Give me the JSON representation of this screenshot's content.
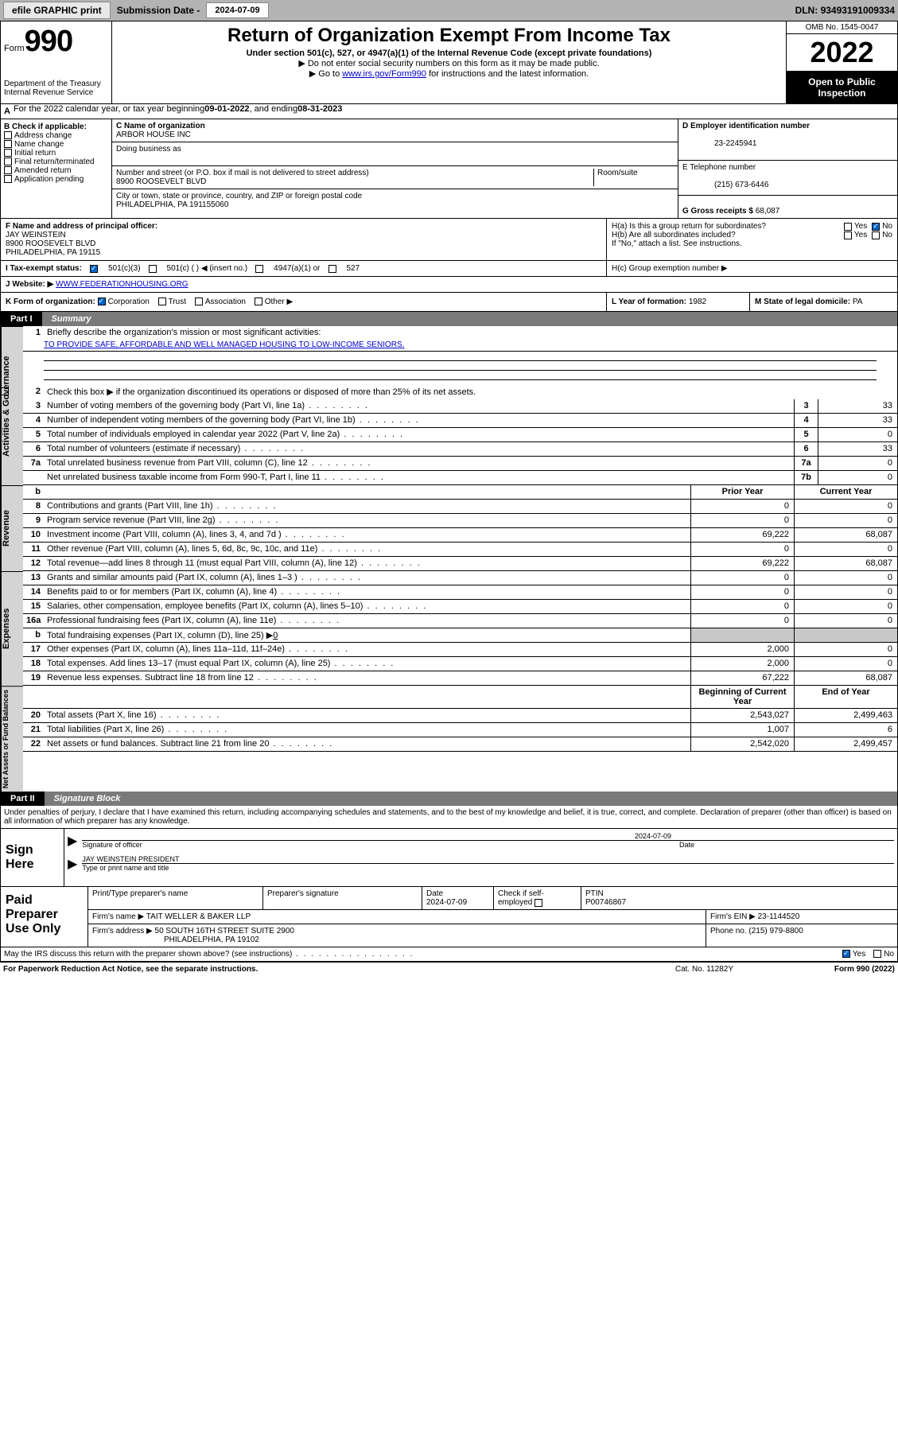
{
  "topbar": {
    "efile_btn": "efile GRAPHIC print",
    "submission_label": "Submission Date - ",
    "submission_date": "2024-07-09",
    "dln_label": "DLN: ",
    "dln": "93493191009334"
  },
  "header": {
    "form_word": "Form",
    "form_no": "990",
    "dept": "Department of the Treasury",
    "irs": "Internal Revenue Service",
    "title": "Return of Organization Exempt From Income Tax",
    "sub1": "Under section 501(c), 527, or 4947(a)(1) of the Internal Revenue Code (except private foundations)",
    "sub2": "▶ Do not enter social security numbers on this form as it may be made public.",
    "sub3_pre": "▶ Go to ",
    "sub3_link": "www.irs.gov/Form990",
    "sub3_post": " for instructions and the latest information.",
    "omb": "OMB No. 1545-0047",
    "year": "2022",
    "open": "Open to Public Inspection"
  },
  "row_a": {
    "label": "A",
    "text": " For the 2022 calendar year, or tax year beginning ",
    "begin": "09-01-2022",
    "mid": " , and ending ",
    "end": "08-31-2023"
  },
  "section_b": {
    "label": "B Check if applicable:",
    "addr_change": "Address change",
    "name_change": "Name change",
    "initial": "Initial return",
    "final": "Final return/terminated",
    "amended": "Amended return",
    "app_pending": "Application pending"
  },
  "section_c": {
    "name_label": "C Name of organization",
    "name": "ARBOR HOUSE INC",
    "dba_label": "Doing business as",
    "addr_label": "Number and street (or P.O. box if mail is not delivered to street address)",
    "room_label": "Room/suite",
    "addr": "8900 ROOSEVELT BLVD",
    "city_label": "City or town, state or province, country, and ZIP or foreign postal code",
    "city": "PHILADELPHIA, PA  191155060"
  },
  "section_d": {
    "ein_label": "D Employer identification number",
    "ein": "23-2245941",
    "phone_label": "E Telephone number",
    "phone": "(215) 673-6446",
    "gross_label": "G Gross receipts $ ",
    "gross": "68,087"
  },
  "officer": {
    "label": "F  Name and address of principal officer:",
    "name": "JAY WEINSTEIN",
    "addr1": "8900 ROOSEVELT BLVD",
    "addr2": "PHILADELPHIA, PA  19115",
    "ha": "H(a)  Is this a group return for subordinates?",
    "hb": "H(b)  Are all subordinates included?",
    "hb_note": "If \"No,\" attach a list. See instructions.",
    "yes": "Yes",
    "no": "No"
  },
  "status": {
    "i_label": "I   Tax-exempt status:",
    "c3": "501(c)(3)",
    "c_blank": "501(c) (   ) ◀ (insert no.)",
    "a1": "4947(a)(1) or",
    "s527": "527",
    "hc": "H(c)  Group exemption number ▶"
  },
  "website": {
    "j_label": "J   Website: ▶",
    "url": "WWW.FEDERATIONHOUSING.ORG"
  },
  "row_k": {
    "label": "K Form of organization:",
    "corp": "Corporation",
    "trust": "Trust",
    "assoc": "Association",
    "other": "Other ▶",
    "l_label": "L Year of formation: ",
    "l_val": "1982",
    "m_label": "M State of legal domicile: ",
    "m_val": "PA"
  },
  "parts": {
    "p1_num": "Part I",
    "p1_title": "Summary",
    "p2_num": "Part II",
    "p2_title": "Signature Block"
  },
  "vtabs": {
    "gov": "Activities & Governance",
    "rev": "Revenue",
    "exp": "Expenses",
    "net": "Net Assets or Fund Balances"
  },
  "summary": {
    "q1": "Briefly describe the organization's mission or most significant activities:",
    "mission": "TO PROVIDE SAFE, AFFORDABLE AND WELL MANAGED HOUSING TO LOW-INCOME SENIORS.",
    "q2": "Check this box ▶        if the organization discontinued its operations or disposed of more than 25% of its net assets.",
    "lines": [
      {
        "n": "3",
        "d": "Number of voting members of the governing body (Part VI, line 1a)",
        "box": "3",
        "v": "33"
      },
      {
        "n": "4",
        "d": "Number of independent voting members of the governing body (Part VI, line 1b)",
        "box": "4",
        "v": "33"
      },
      {
        "n": "5",
        "d": "Total number of individuals employed in calendar year 2022 (Part V, line 2a)",
        "box": "5",
        "v": "0"
      },
      {
        "n": "6",
        "d": "Total number of volunteers (estimate if necessary)",
        "box": "6",
        "v": "33"
      },
      {
        "n": "7a",
        "d": "Total unrelated business revenue from Part VIII, column (C), line 12",
        "box": "7a",
        "v": "0"
      },
      {
        "n": "",
        "d": "Net unrelated business taxable income from Form 990-T, Part I, line 11",
        "box": "7b",
        "v": "0"
      }
    ],
    "hdr_b": "b",
    "hdr_prior": "Prior Year",
    "hdr_current": "Current Year",
    "rev_lines": [
      {
        "n": "8",
        "d": "Contributions and grants (Part VIII, line 1h)",
        "p": "0",
        "c": "0"
      },
      {
        "n": "9",
        "d": "Program service revenue (Part VIII, line 2g)",
        "p": "0",
        "c": "0"
      },
      {
        "n": "10",
        "d": "Investment income (Part VIII, column (A), lines 3, 4, and 7d )",
        "p": "69,222",
        "c": "68,087"
      },
      {
        "n": "11",
        "d": "Other revenue (Part VIII, column (A), lines 5, 6d, 8c, 9c, 10c, and 11e)",
        "p": "0",
        "c": "0"
      },
      {
        "n": "12",
        "d": "Total revenue—add lines 8 through 11 (must equal Part VIII, column (A), line 12)",
        "p": "69,222",
        "c": "68,087"
      }
    ],
    "exp_lines": [
      {
        "n": "13",
        "d": "Grants and similar amounts paid (Part IX, column (A), lines 1–3 )",
        "p": "0",
        "c": "0"
      },
      {
        "n": "14",
        "d": "Benefits paid to or for members (Part IX, column (A), line 4)",
        "p": "0",
        "c": "0"
      },
      {
        "n": "15",
        "d": "Salaries, other compensation, employee benefits (Part IX, column (A), lines 5–10)",
        "p": "0",
        "c": "0"
      },
      {
        "n": "16a",
        "d": "Professional fundraising fees (Part IX, column (A), line 11e)",
        "p": "0",
        "c": "0"
      }
    ],
    "line_b": {
      "n": "b",
      "d": "Total fundraising expenses (Part IX, column (D), line 25) ▶",
      "v": "0"
    },
    "exp_lines2": [
      {
        "n": "17",
        "d": "Other expenses (Part IX, column (A), lines 11a–11d, 11f–24e)",
        "p": "2,000",
        "c": "0"
      },
      {
        "n": "18",
        "d": "Total expenses. Add lines 13–17 (must equal Part IX, column (A), line 25)",
        "p": "2,000",
        "c": "0"
      },
      {
        "n": "19",
        "d": "Revenue less expenses. Subtract line 18 from line 12",
        "p": "67,222",
        "c": "68,087"
      }
    ],
    "hdr_begin": "Beginning of Current Year",
    "hdr_end": "End of Year",
    "net_lines": [
      {
        "n": "20",
        "d": "Total assets (Part X, line 16)",
        "p": "2,543,027",
        "c": "2,499,463"
      },
      {
        "n": "21",
        "d": "Total liabilities (Part X, line 26)",
        "p": "1,007",
        "c": "6"
      },
      {
        "n": "22",
        "d": "Net assets or fund balances. Subtract line 21 from line 20",
        "p": "2,542,020",
        "c": "2,499,457"
      }
    ]
  },
  "perjury": "Under penalties of perjury, I declare that I have examined this return, including accompanying schedules and statements, and to the best of my knowledge and belief, it is true, correct, and complete. Declaration of preparer (other than officer) is based on all information of which preparer has any knowledge.",
  "sign": {
    "label": "Sign Here",
    "sig_of_officer": "Signature of officer",
    "date_label": "Date",
    "date": "2024-07-09",
    "name_title": "JAY WEINSTEIN  PRESIDENT",
    "type_name": "Type or print name and title"
  },
  "preparer": {
    "label": "Paid Preparer Use Only",
    "h_name": "Print/Type preparer's name",
    "h_sig": "Preparer's signature",
    "h_date": "Date",
    "date": "2024-07-09",
    "h_check": "Check         if self-employed",
    "h_ptin": "PTIN",
    "ptin": "P00746867",
    "firm_name_l": "Firm's name      ▶",
    "firm_name": "TAIT WELLER & BAKER LLP",
    "firm_ein_l": "Firm's EIN ▶ ",
    "firm_ein": "23-1144520",
    "firm_addr_l": "Firm's address ▶",
    "firm_addr1": "50 SOUTH 16TH STREET SUITE 2900",
    "firm_addr2": "PHILADELPHIA, PA  19102",
    "phone_l": "Phone no. ",
    "phone": "(215) 979-8800"
  },
  "discuss": {
    "q": "May the IRS discuss this return with the preparer shown above? (see instructions)",
    "yes": "Yes",
    "no": "No"
  },
  "footer": {
    "left": "For Paperwork Reduction Act Notice, see the separate instructions.",
    "mid": "Cat. No. 11282Y",
    "right_pre": "Form ",
    "right_bold": "990",
    "right_post": " (2022)"
  },
  "colors": {
    "link": "#0000cc",
    "topbar_bg": "#b3b3b3",
    "shade": "#c8c8c8",
    "vtab_bg": "#d4d4d4"
  }
}
